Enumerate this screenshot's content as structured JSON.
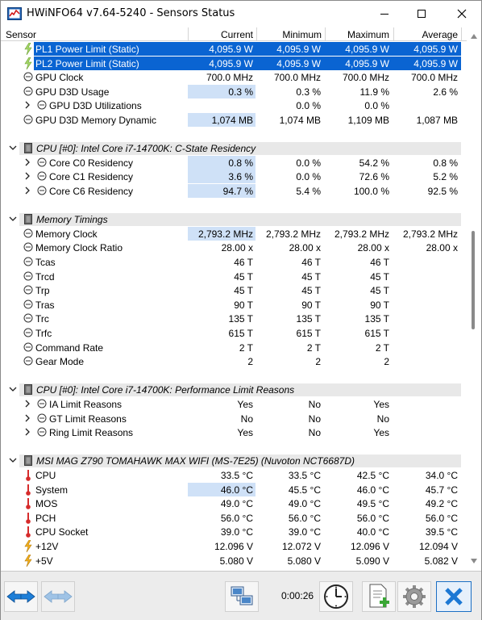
{
  "window": {
    "title": "HWiNFO64 v7.64-5240 - Sensors Status",
    "minimize_icon": "minimize-icon",
    "maximize_icon": "maximize-icon",
    "close_icon": "close-icon"
  },
  "columns": [
    "Sensor",
    "Current",
    "Minimum",
    "Maximum",
    "Average"
  ],
  "rows": [
    {
      "type": "sensor",
      "icon": "bolt",
      "selected": true,
      "indent": 0,
      "label": "PL1 Power Limit (Static)",
      "cur": "4,095.9 W",
      "min": "4,095.9 W",
      "max": "4,095.9 W",
      "avg": "4,095.9 W"
    },
    {
      "type": "sensor",
      "icon": "bolt",
      "selected": true,
      "indent": 0,
      "label": "PL2 Power Limit (Static)",
      "cur": "4,095.9 W",
      "min": "4,095.9 W",
      "max": "4,095.9 W",
      "avg": "4,095.9 W"
    },
    {
      "type": "sensor",
      "icon": "clock",
      "indent": 0,
      "label": "GPU Clock",
      "cur": "700.0 MHz",
      "min": "700.0 MHz",
      "max": "700.0 MHz",
      "avg": "700.0 MHz"
    },
    {
      "type": "sensor",
      "icon": "clock",
      "indent": 0,
      "highlight": true,
      "label": "GPU D3D Usage",
      "cur": "0.3 %",
      "min": "0.3 %",
      "max": "11.9 %",
      "avg": "2.6 %"
    },
    {
      "type": "sensor",
      "icon": "clock",
      "indent": 1,
      "expander": true,
      "label": "GPU D3D Utilizations",
      "cur": "",
      "min": "0.0 %",
      "max": "0.0 %",
      "avg": ""
    },
    {
      "type": "sensor",
      "icon": "clock",
      "indent": 0,
      "highlight": true,
      "label": "GPU D3D Memory Dynamic",
      "cur": "1,074 MB",
      "min": "1,074 MB",
      "max": "1,109 MB",
      "avg": "1,087 MB"
    },
    {
      "type": "blank"
    },
    {
      "type": "group",
      "label": "CPU [#0]: Intel Core i7-14700K: C-State Residency"
    },
    {
      "type": "sensor",
      "icon": "clock",
      "indent": 1,
      "expander": true,
      "highlight": true,
      "label": "Core C0 Residency",
      "cur": "0.8 %",
      "min": "0.0 %",
      "max": "54.2 %",
      "avg": "0.8 %"
    },
    {
      "type": "sensor",
      "icon": "clock",
      "indent": 1,
      "expander": true,
      "highlight": true,
      "label": "Core C1 Residency",
      "cur": "3.6 %",
      "min": "0.0 %",
      "max": "72.6 %",
      "avg": "5.2 %"
    },
    {
      "type": "sensor",
      "icon": "clock",
      "indent": 1,
      "expander": true,
      "highlight": true,
      "label": "Core C6 Residency",
      "cur": "94.7 %",
      "min": "5.4 %",
      "max": "100.0 %",
      "avg": "92.5 %"
    },
    {
      "type": "blank"
    },
    {
      "type": "group",
      "label": "Memory Timings"
    },
    {
      "type": "sensor",
      "icon": "clock",
      "indent": 0,
      "highlight": true,
      "label": "Memory Clock",
      "cur": "2,793.2 MHz",
      "min": "2,793.2 MHz",
      "max": "2,793.2 MHz",
      "avg": "2,793.2 MHz"
    },
    {
      "type": "sensor",
      "icon": "clock",
      "indent": 0,
      "label": "Memory Clock Ratio",
      "cur": "28.00 x",
      "min": "28.00 x",
      "max": "28.00 x",
      "avg": "28.00 x"
    },
    {
      "type": "sensor",
      "icon": "clock",
      "indent": 0,
      "label": "Tcas",
      "cur": "46 T",
      "min": "46 T",
      "max": "46 T",
      "avg": ""
    },
    {
      "type": "sensor",
      "icon": "clock",
      "indent": 0,
      "label": "Trcd",
      "cur": "45 T",
      "min": "45 T",
      "max": "45 T",
      "avg": ""
    },
    {
      "type": "sensor",
      "icon": "clock",
      "indent": 0,
      "label": "Trp",
      "cur": "45 T",
      "min": "45 T",
      "max": "45 T",
      "avg": ""
    },
    {
      "type": "sensor",
      "icon": "clock",
      "indent": 0,
      "label": "Tras",
      "cur": "90 T",
      "min": "90 T",
      "max": "90 T",
      "avg": ""
    },
    {
      "type": "sensor",
      "icon": "clock",
      "indent": 0,
      "label": "Trc",
      "cur": "135 T",
      "min": "135 T",
      "max": "135 T",
      "avg": ""
    },
    {
      "type": "sensor",
      "icon": "clock",
      "indent": 0,
      "label": "Trfc",
      "cur": "615 T",
      "min": "615 T",
      "max": "615 T",
      "avg": ""
    },
    {
      "type": "sensor",
      "icon": "clock",
      "indent": 0,
      "label": "Command Rate",
      "cur": "2 T",
      "min": "2 T",
      "max": "2 T",
      "avg": ""
    },
    {
      "type": "sensor",
      "icon": "clock",
      "indent": 0,
      "label": "Gear Mode",
      "cur": "2",
      "min": "2",
      "max": "2",
      "avg": ""
    },
    {
      "type": "blank"
    },
    {
      "type": "group",
      "label": "CPU [#0]: Intel Core i7-14700K: Performance Limit Reasons"
    },
    {
      "type": "sensor",
      "icon": "clock",
      "indent": 1,
      "expander": true,
      "label": "IA Limit Reasons",
      "cur": "Yes",
      "min": "No",
      "max": "Yes",
      "avg": ""
    },
    {
      "type": "sensor",
      "icon": "clock",
      "indent": 1,
      "expander": true,
      "label": "GT Limit Reasons",
      "cur": "No",
      "min": "No",
      "max": "No",
      "avg": ""
    },
    {
      "type": "sensor",
      "icon": "clock",
      "indent": 1,
      "expander": true,
      "label": "Ring Limit Reasons",
      "cur": "Yes",
      "min": "No",
      "max": "Yes",
      "avg": ""
    },
    {
      "type": "blank"
    },
    {
      "type": "group",
      "label": "MSI MAG Z790 TOMAHAWK MAX WIFI (MS-7E25) (Nuvoton NCT6687D)"
    },
    {
      "type": "sensor",
      "icon": "therm",
      "indent": 0,
      "label": "CPU",
      "cur": "33.5 °C",
      "min": "33.5 °C",
      "max": "42.5 °C",
      "avg": "34.0 °C"
    },
    {
      "type": "sensor",
      "icon": "therm",
      "indent": 0,
      "highlight": true,
      "label": "System",
      "cur": "46.0 °C",
      "min": "45.5 °C",
      "max": "46.0 °C",
      "avg": "45.7 °C"
    },
    {
      "type": "sensor",
      "icon": "therm",
      "indent": 0,
      "label": "MOS",
      "cur": "49.0 °C",
      "min": "49.0 °C",
      "max": "49.5 °C",
      "avg": "49.2 °C"
    },
    {
      "type": "sensor",
      "icon": "therm",
      "indent": 0,
      "label": "PCH",
      "cur": "56.0 °C",
      "min": "56.0 °C",
      "max": "56.0 °C",
      "avg": "56.0 °C"
    },
    {
      "type": "sensor",
      "icon": "therm",
      "indent": 0,
      "label": "CPU Socket",
      "cur": "39.0 °C",
      "min": "39.0 °C",
      "max": "40.0 °C",
      "avg": "39.5 °C"
    },
    {
      "type": "sensor",
      "icon": "bolt",
      "indent": 0,
      "label": "+12V",
      "cur": "12.096 V",
      "min": "12.072 V",
      "max": "12.096 V",
      "avg": "12.094 V"
    },
    {
      "type": "sensor",
      "icon": "bolt",
      "indent": 0,
      "label": "+5V",
      "cur": "5.080 V",
      "min": "5.080 V",
      "max": "5.090 V",
      "avg": "5.082 V"
    }
  ],
  "toolbar": {
    "elapsed": "0:00:26",
    "buttons": [
      "nav-arrows-icon",
      "nav-arrows-disabled-icon",
      "network-icon",
      "clock-icon",
      "add-report-icon",
      "gear-icon",
      "close-x-icon"
    ]
  },
  "colors": {
    "selection": "#0a64d2",
    "highlight": "#cfe1f7",
    "group_bg": "#e8e8e8"
  }
}
